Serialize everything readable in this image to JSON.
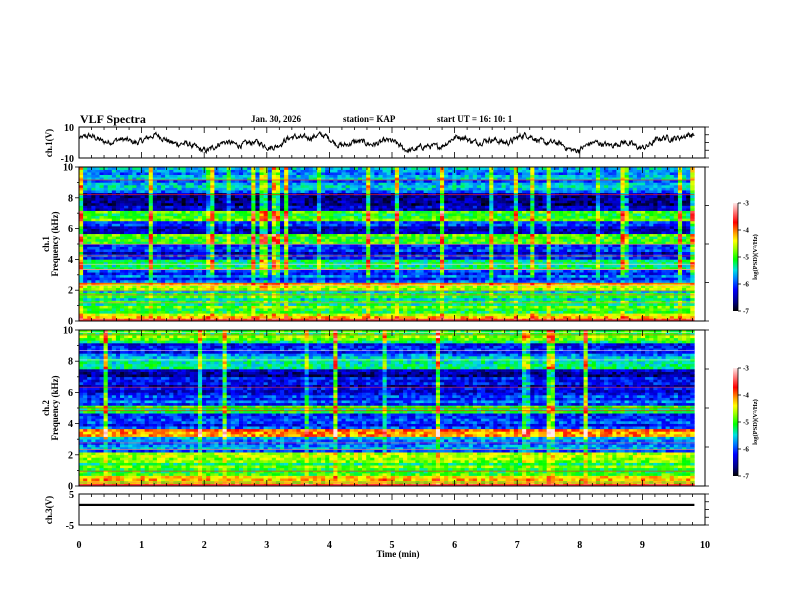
{
  "header": {
    "title": "VLF Spectra",
    "date": "Jan. 30, 2026",
    "station": "station= KAP",
    "start": "start  UT =   16: 10: 1"
  },
  "chart_data": [
    {
      "type": "line",
      "name": "ch1-waveform",
      "ylabel": "ch.1(V)",
      "ylim": [
        -10,
        10
      ],
      "yticks": [
        "10",
        "-10"
      ],
      "xlim": [
        0,
        10
      ],
      "data_end_min": 9.83,
      "trace_color": "#000000"
    },
    {
      "type": "heatmap",
      "name": "ch1-spectrogram",
      "ylabel": [
        "ch.1",
        "Frequency  (kHz)"
      ],
      "ylim": [
        0,
        10
      ],
      "yticks": [
        "0",
        "2",
        "4",
        "6",
        "8",
        "10"
      ],
      "xlim": [
        0,
        10
      ],
      "data_end_min": 9.83,
      "colorbar": {
        "label": "log(PSD)(V²/Hz)",
        "range": [
          -7,
          -3
        ],
        "ticks": [
          "-3",
          "-4",
          "-5",
          "-6",
          "-7"
        ]
      },
      "bands_khz": [
        {
          "from": 0.0,
          "to": 0.15,
          "level": -3.6
        },
        {
          "from": 0.15,
          "to": 0.5,
          "level": -4.5
        },
        {
          "from": 0.5,
          "to": 1.0,
          "level": -4.9
        },
        {
          "from": 1.0,
          "to": 2.0,
          "level": -5.3
        },
        {
          "from": 2.0,
          "to": 2.5,
          "level": -4.4
        },
        {
          "from": 2.5,
          "to": 3.4,
          "level": -5.9
        },
        {
          "from": 3.4,
          "to": 4.0,
          "level": -5.4
        },
        {
          "from": 4.0,
          "to": 5.0,
          "level": -6.2
        },
        {
          "from": 5.0,
          "to": 5.6,
          "level": -5.0
        },
        {
          "from": 5.6,
          "to": 6.5,
          "level": -6.3
        },
        {
          "from": 6.5,
          "to": 7.2,
          "level": -5.1
        },
        {
          "from": 7.2,
          "to": 8.4,
          "level": -6.6
        },
        {
          "from": 8.4,
          "to": 10.0,
          "level": -5.7
        }
      ]
    },
    {
      "type": "heatmap",
      "name": "ch2-spectrogram",
      "ylabel": [
        "ch.2",
        "Frequency  (kHz)"
      ],
      "ylim": [
        0,
        10
      ],
      "yticks": [
        "0",
        "2",
        "4",
        "6",
        "8",
        "10"
      ],
      "xlim": [
        0,
        10
      ],
      "data_end_min": 9.83,
      "colorbar": {
        "label": "log(PSD)(V²/Hz)",
        "range": [
          -7,
          -3
        ],
        "ticks": [
          "-3",
          "-4",
          "-5",
          "-6",
          "-7"
        ]
      },
      "bands_khz": [
        {
          "from": 0.0,
          "to": 0.2,
          "level": -3.7
        },
        {
          "from": 0.2,
          "to": 0.6,
          "level": -4.4
        },
        {
          "from": 0.6,
          "to": 1.6,
          "level": -5.0
        },
        {
          "from": 1.6,
          "to": 2.2,
          "level": -4.6
        },
        {
          "from": 2.2,
          "to": 3.2,
          "level": -5.9
        },
        {
          "from": 3.2,
          "to": 3.7,
          "level": -4.2
        },
        {
          "from": 3.7,
          "to": 4.6,
          "level": -6.0
        },
        {
          "from": 4.6,
          "to": 5.2,
          "level": -5.0
        },
        {
          "from": 5.2,
          "to": 6.2,
          "level": -6.1
        },
        {
          "from": 6.2,
          "to": 7.5,
          "level": -6.4
        },
        {
          "from": 7.5,
          "to": 8.3,
          "level": -5.3
        },
        {
          "from": 8.3,
          "to": 9.2,
          "level": -6.1
        },
        {
          "from": 9.2,
          "to": 10.0,
          "level": -5.0
        }
      ]
    },
    {
      "type": "line",
      "name": "ch3-waveform",
      "ylabel": "ch.3(V)",
      "ylim": [
        -5,
        5
      ],
      "yticks": [
        "5",
        "-5"
      ],
      "xlim": [
        0,
        10
      ],
      "level_v": 1.5,
      "band_halfwidth_v": 0.35,
      "data_end_min": 9.83,
      "xlabel": "Time  (min)",
      "xticks": [
        "0",
        "1",
        "2",
        "3",
        "4",
        "5",
        "6",
        "7",
        "8",
        "9",
        "10"
      ]
    }
  ]
}
